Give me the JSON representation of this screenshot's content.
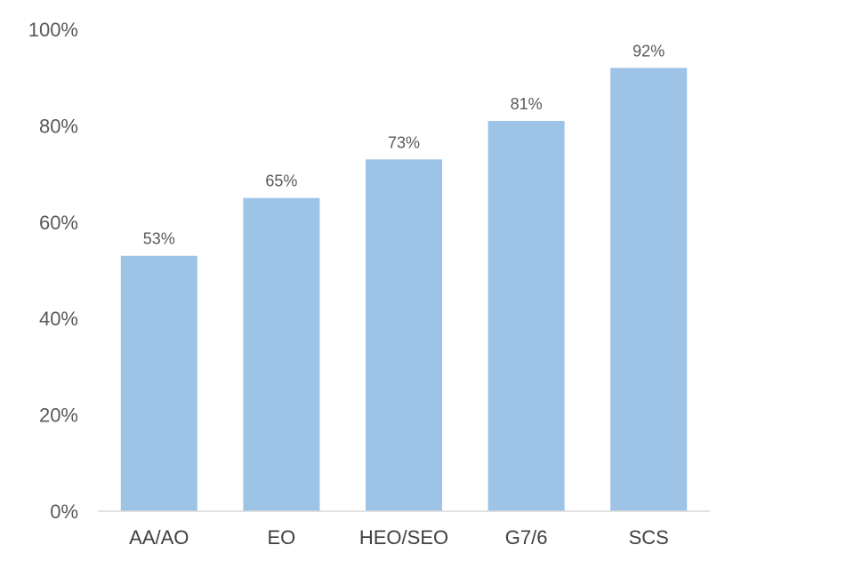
{
  "chart_data": {
    "type": "bar",
    "categories": [
      "AA/AO",
      "EO",
      "HEO/SEO",
      "G7/6",
      "SCS"
    ],
    "values": [
      53,
      65,
      73,
      81,
      92
    ],
    "data_labels": [
      "53%",
      "65%",
      "73%",
      "81%",
      "92%"
    ],
    "title": "",
    "xlabel": "",
    "ylabel": "",
    "ylim": [
      0,
      100
    ],
    "y_ticks": [
      0,
      20,
      40,
      60,
      80,
      100
    ],
    "y_tick_labels": [
      "0%",
      "20%",
      "40%",
      "60%",
      "80%",
      "100%"
    ],
    "grid": false,
    "legend": "none",
    "bar_color": "#9DC3E6",
    "axis_color": "#D9D9D9"
  }
}
